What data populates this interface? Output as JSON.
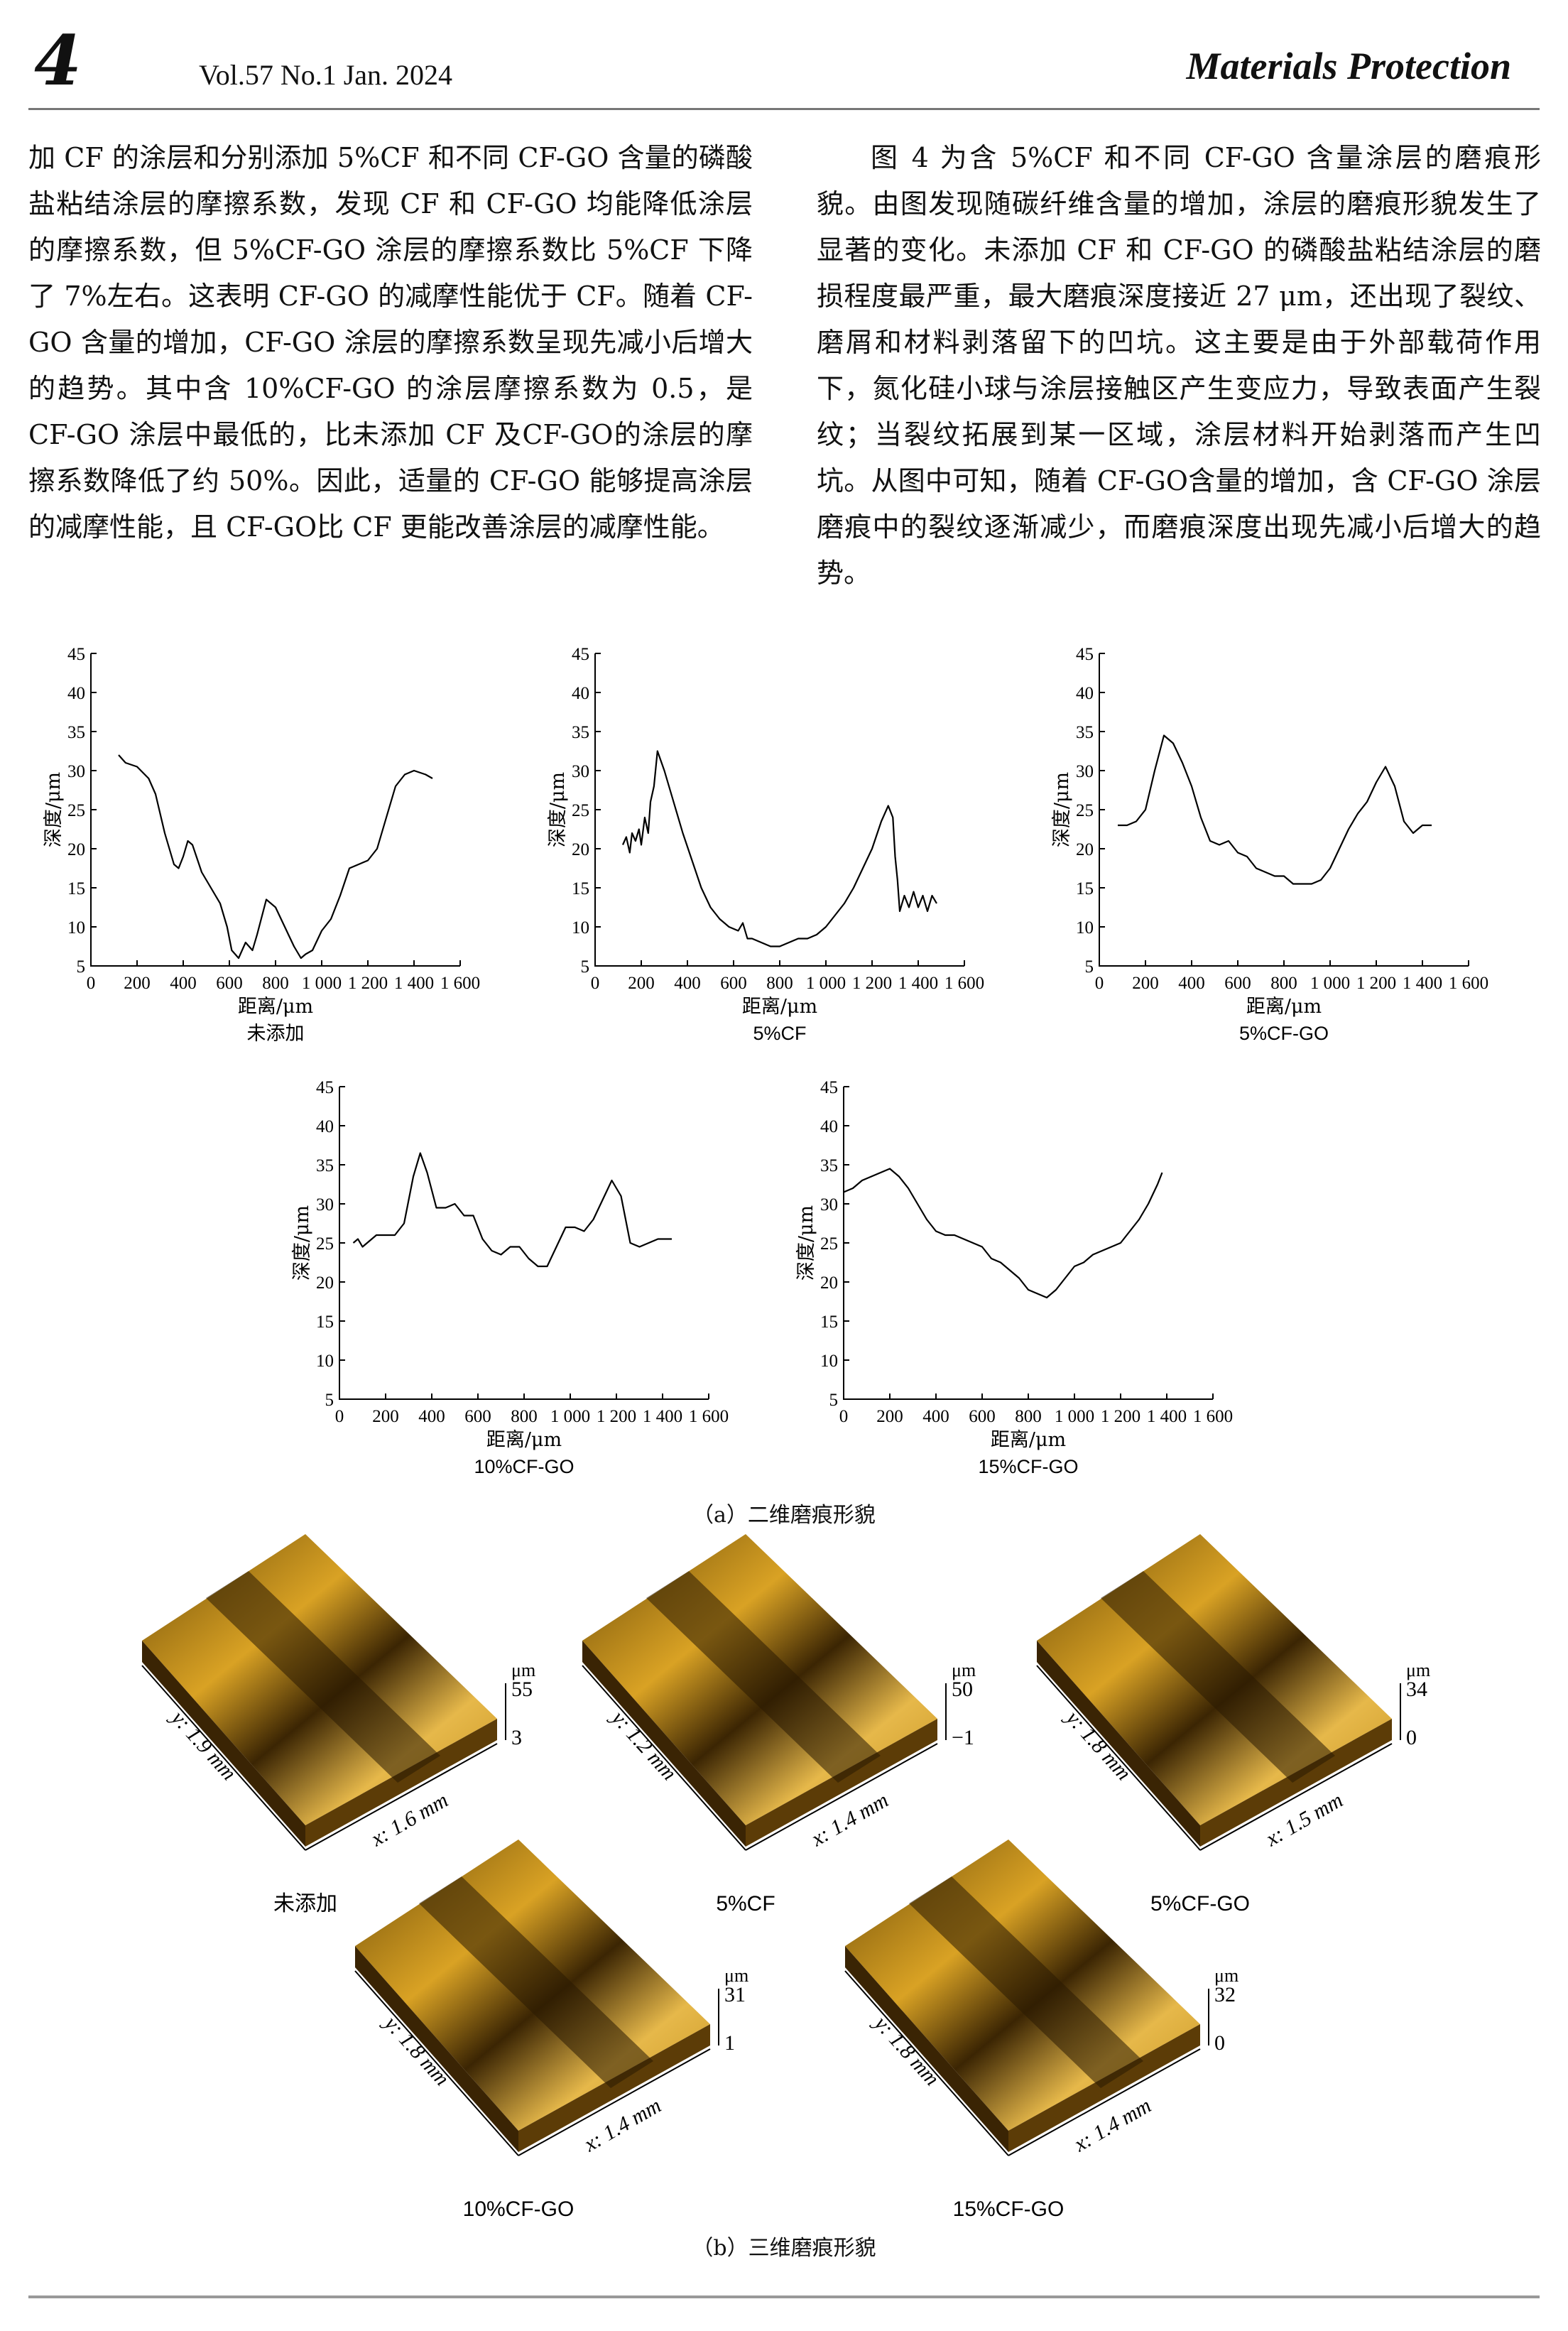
{
  "header": {
    "page_number": "4",
    "issue": "Vol.57  No.1  Jan. 2024",
    "journal": "Materials Protection"
  },
  "text": {
    "left": "加 CF 的涂层和分别添加 5%CF 和不同 CF-GO 含量的磷酸盐粘结涂层的摩擦系数，发现 CF 和 CF-GO 均能降低涂层的摩擦系数，但 5%CF-GO 涂层的摩擦系数比 5%CF 下降了 7%左右。这表明 CF-GO 的减摩性能优于 CF。随着 CF-GO 含量的增加，CF-GO 涂层的摩擦系数呈现先减小后增大的趋势。其中含 10%CF-GO 的涂层摩擦系数为 0.5，是 CF-GO 涂层中最低的，比未添加 CF 及CF-GO的涂层的摩擦系数降低了约 50%。因此，适量的 CF-GO 能够提高涂层的减摩性能，且 CF-GO比 CF 更能改善涂层的减摩性能。",
    "right": "图 4 为含 5%CF 和不同 CF-GO 含量涂层的磨痕形貌。由图发现随碳纤维含量的增加，涂层的磨痕形貌发生了显著的变化。未添加 CF 和 CF-GO 的磷酸盐粘结涂层的磨损程度最严重，最大磨痕深度接近 27 μm，还出现了裂纹、磨屑和材料剥落留下的凹坑。这主要是由于外部载荷作用下，氮化硅小球与涂层接触区产生变应力，导致表面产生裂纹；当裂纹拓展到某一区域，涂层材料开始剥落而产生凹坑。从图中可知，随着 CF-GO含量的增加，含 CF-GO 涂层磨痕中的裂纹逐渐减少，而磨痕深度出现先减小后增大的趋势。"
  },
  "figure": {
    "caption_a": "（a）二维磨痕形貌",
    "caption_b": "（b）三维磨痕形貌",
    "surfaces": [
      {
        "label": "未添加",
        "unit": "μm",
        "zmax": "55",
        "zmin": "3",
        "y": "y: 1.9 mm",
        "x": "x: 1.6 mm"
      },
      {
        "label": "5%CF",
        "unit": "μm",
        "zmax": "50",
        "zmin": "−1",
        "y": "y: 1.2 mm",
        "x": "x: 1.4 mm"
      },
      {
        "label": "5%CF-GO",
        "unit": "μm",
        "zmax": "34",
        "zmin": "0",
        "y": "y: 1.8 mm",
        "x": "x: 1.5 mm"
      },
      {
        "label": "10%CF-GO",
        "unit": "μm",
        "zmax": "31",
        "zmin": "1",
        "y": "y: 1.8 mm",
        "x": "x: 1.4 mm"
      },
      {
        "label": "15%CF-GO",
        "unit": "μm",
        "zmax": "32",
        "zmin": "0",
        "y": "y: 1.8 mm",
        "x": "x: 1.4 mm"
      }
    ]
  },
  "chart_data": [
    {
      "type": "line",
      "caption": "未添加",
      "xlabel": "距离/μm",
      "ylabel": "深度/μm",
      "xlim": [
        0,
        1600
      ],
      "ylim": [
        5,
        45
      ],
      "xticks": [
        "0",
        "200",
        "400",
        "600",
        "800",
        "1 000",
        "1 200",
        "1 400",
        "1 600"
      ],
      "yticks": [
        "5",
        "10",
        "15",
        "20",
        "25",
        "30",
        "35",
        "40",
        "45"
      ],
      "x": [
        120,
        150,
        200,
        250,
        280,
        320,
        360,
        380,
        400,
        420,
        440,
        480,
        520,
        560,
        590,
        610,
        640,
        670,
        700,
        720,
        760,
        800,
        840,
        880,
        910,
        930,
        960,
        1000,
        1040,
        1080,
        1120,
        1160,
        1200,
        1240,
        1280,
        1320,
        1360,
        1400,
        1450,
        1480
      ],
      "y": [
        32,
        31,
        30.5,
        29,
        27,
        22,
        18,
        17.5,
        19,
        21,
        20.5,
        17,
        15,
        13,
        10,
        7,
        6,
        8,
        7,
        9,
        13.5,
        12.5,
        10,
        7.5,
        6,
        6.5,
        7,
        9.5,
        11,
        14,
        17.5,
        18,
        18.5,
        20,
        24,
        28,
        29.5,
        30,
        29.5,
        29
      ]
    },
    {
      "type": "line",
      "caption": "5%CF",
      "xlabel": "距离/μm",
      "ylabel": "深度/μm",
      "xlim": [
        0,
        1600
      ],
      "ylim": [
        5,
        45
      ],
      "xticks": [
        "0",
        "200",
        "400",
        "600",
        "800",
        "1 000",
        "1 200",
        "1 400",
        "1 600"
      ],
      "yticks": [
        "5",
        "10",
        "15",
        "20",
        "25",
        "30",
        "35",
        "40",
        "45"
      ],
      "x": [
        120,
        135,
        150,
        160,
        175,
        190,
        200,
        215,
        230,
        240,
        255,
        270,
        300,
        340,
        380,
        420,
        460,
        500,
        540,
        580,
        620,
        640,
        660,
        680,
        720,
        760,
        800,
        840,
        880,
        920,
        960,
        1000,
        1040,
        1080,
        1120,
        1160,
        1200,
        1240,
        1270,
        1290,
        1300,
        1310,
        1320,
        1340,
        1360,
        1380,
        1400,
        1420,
        1440,
        1460,
        1480
      ],
      "y": [
        20.5,
        21.5,
        19.5,
        22,
        21,
        22.5,
        20.5,
        24,
        22,
        26,
        28,
        32.5,
        30,
        26,
        22,
        18.5,
        15,
        12.5,
        11,
        10,
        9.5,
        10.5,
        8.5,
        8.5,
        8,
        7.5,
        7.5,
        8,
        8.5,
        8.5,
        9,
        10,
        11.5,
        13,
        15,
        17.5,
        20,
        23.5,
        25.5,
        24,
        19,
        16,
        12,
        14,
        12.5,
        14.5,
        12.5,
        14,
        12,
        14,
        13
      ]
    },
    {
      "type": "line",
      "caption": "5%CF-GO",
      "xlabel": "距离/μm",
      "ylabel": "深度/μm",
      "xlim": [
        0,
        1600
      ],
      "ylim": [
        5,
        45
      ],
      "xticks": [
        "0",
        "200",
        "400",
        "600",
        "800",
        "1 000",
        "1 200",
        "1 400",
        "1 600"
      ],
      "yticks": [
        "5",
        "10",
        "15",
        "20",
        "25",
        "30",
        "35",
        "40",
        "45"
      ],
      "x": [
        80,
        120,
        160,
        200,
        240,
        280,
        320,
        360,
        400,
        440,
        480,
        520,
        560,
        600,
        640,
        680,
        720,
        760,
        800,
        840,
        880,
        920,
        960,
        1000,
        1040,
        1080,
        1120,
        1160,
        1200,
        1240,
        1280,
        1320,
        1360,
        1400,
        1440
      ],
      "y": [
        23,
        23,
        23.5,
        25,
        30,
        34.5,
        33.5,
        31,
        28,
        24,
        21,
        20.5,
        21,
        19.5,
        19,
        17.5,
        17,
        16.5,
        16.5,
        15.5,
        15.5,
        15.5,
        16,
        17.5,
        20,
        22.5,
        24.5,
        26,
        28.5,
        30.5,
        28,
        23.5,
        22,
        23,
        23
      ]
    },
    {
      "type": "line",
      "caption": "10%CF-GO",
      "xlabel": "距离/μm",
      "ylabel": "深度/μm",
      "xlim": [
        0,
        1600
      ],
      "ylim": [
        5,
        45
      ],
      "xticks": [
        "0",
        "200",
        "400",
        "600",
        "800",
        "1 000",
        "1 200",
        "1 400",
        "1 600"
      ],
      "yticks": [
        "5",
        "10",
        "15",
        "20",
        "25",
        "30",
        "35",
        "40",
        "45"
      ],
      "x": [
        60,
        80,
        100,
        120,
        160,
        200,
        240,
        280,
        320,
        350,
        380,
        420,
        460,
        500,
        540,
        580,
        620,
        660,
        700,
        740,
        780,
        820,
        860,
        900,
        940,
        980,
        1020,
        1060,
        1100,
        1140,
        1180,
        1220,
        1260,
        1300,
        1340,
        1380,
        1440
      ],
      "y": [
        25,
        25.5,
        24.5,
        25,
        26,
        26,
        26,
        27.5,
        33.5,
        36.5,
        34,
        29.5,
        29.5,
        30,
        28.5,
        28.5,
        25.5,
        24,
        23.5,
        24.5,
        24.5,
        23,
        22,
        22,
        24.5,
        27,
        27,
        26.5,
        28,
        30.5,
        33,
        31,
        25,
        24.5,
        25,
        25.5,
        25.5
      ]
    },
    {
      "type": "line",
      "caption": "15%CF-GO",
      "xlabel": "距离/μm",
      "ylabel": "深度/μm",
      "xlim": [
        0,
        1600
      ],
      "ylim": [
        5,
        45
      ],
      "xticks": [
        "0",
        "200",
        "400",
        "600",
        "800",
        "1 000",
        "1 200",
        "1 400",
        "1 600"
      ],
      "yticks": [
        "5",
        "10",
        "15",
        "20",
        "25",
        "30",
        "35",
        "40",
        "45"
      ],
      "x": [
        0,
        40,
        80,
        120,
        160,
        200,
        240,
        280,
        320,
        360,
        400,
        440,
        480,
        520,
        560,
        600,
        640,
        680,
        720,
        760,
        800,
        840,
        880,
        920,
        960,
        1000,
        1040,
        1080,
        1120,
        1160,
        1200,
        1240,
        1280,
        1320,
        1360,
        1380
      ],
      "y": [
        31.5,
        32,
        33,
        33.5,
        34,
        34.5,
        33.5,
        32,
        30,
        28,
        26.5,
        26,
        26,
        25.5,
        25,
        24.5,
        23,
        22.5,
        21.5,
        20.5,
        19,
        18.5,
        18,
        19,
        20.5,
        22,
        22.5,
        23.5,
        24,
        24.5,
        25,
        26.5,
        28,
        30,
        32.5,
        34
      ]
    }
  ]
}
